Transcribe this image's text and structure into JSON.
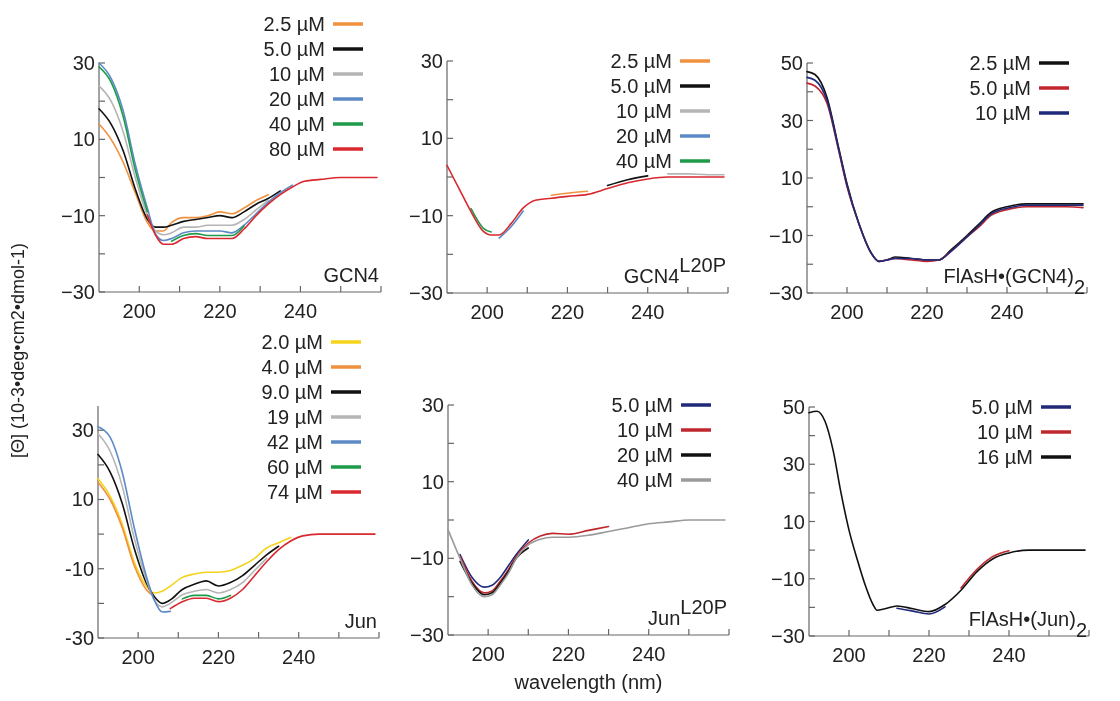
{
  "chart_data": [
    {
      "type": "line",
      "ylabel": "[Θ] (10-3•deg•cm2•dmol-1)",
      "annotations": [
        "GCN4"
      ],
      "legend": "top right",
      "xlim": [
        190,
        260
      ],
      "ylim": [
        -30,
        30
      ],
      "xticks": [
        200,
        {
          "value": 210,
          "label": null
        },
        220,
        {
          "value": 230,
          "label": null
        },
        240,
        {
          "value": 250,
          "label": null
        },
        {
          "value": 260,
          "label": null
        }
      ],
      "yticks": [
        30,
        {
          "value": 20,
          "label": null
        },
        10,
        {
          "value": 0,
          "label": null
        },
        -10,
        {
          "value": -20,
          "label": null
        },
        -30
      ],
      "x": [
        190,
        193,
        196,
        199,
        202,
        204,
        206,
        208,
        211,
        214,
        217,
        220,
        223,
        226,
        229,
        232,
        235,
        238,
        241,
        245,
        250,
        255,
        259
      ],
      "series": [
        {
          "name": "2.5 µM",
          "color": "#f0913f",
          "values": [
            14,
            10,
            4,
            -4,
            -11.8,
            -14,
            -14,
            -11.8,
            -10.5,
            -10.5,
            -10,
            -9,
            -9.5,
            -8,
            -6,
            -4.5,
            null,
            null,
            null,
            null,
            null,
            null,
            null
          ]
        },
        {
          "name": "5.0 µM",
          "color": "#111111",
          "values": [
            18,
            14,
            7,
            -3,
            -10.9,
            -13,
            -13,
            -12.5,
            -11.5,
            -11,
            -10.5,
            -10,
            -10.5,
            -9,
            -7,
            -5.5,
            -3.5,
            null,
            null,
            null,
            null,
            null,
            null
          ]
        },
        {
          "name": "10 µM",
          "color": "#b5b5b5",
          "values": [
            24,
            20,
            12,
            0,
            -10,
            -14,
            -15,
            -14.5,
            -13,
            -13,
            -12.5,
            -12.5,
            -12.5,
            -11,
            -8.5,
            -6,
            null,
            null,
            null,
            null,
            null,
            null,
            null
          ]
        },
        {
          "name": "20 µM",
          "color": "#5b8ac6",
          "values": [
            30,
            26,
            17.5,
            3.5,
            -8,
            -14.8,
            -16.5,
            -16,
            -14.5,
            -14,
            -14,
            -14,
            -14.5,
            -12.5,
            -9.5,
            -6.5,
            -4,
            -2,
            null,
            null,
            null,
            null,
            null
          ]
        },
        {
          "name": "40 µM",
          "color": "#1e9b4a",
          "values": [
            29,
            25,
            16,
            2,
            -9,
            null,
            null,
            -16.7,
            -15.2,
            -14.7,
            -15.2,
            -15.2,
            -15.2,
            -12.7,
            null,
            null,
            null,
            null,
            null,
            null,
            null,
            null,
            null
          ]
        },
        {
          "name": "80 µM",
          "color": "#d9282f",
          "values": [
            null,
            null,
            null,
            null,
            -9.8,
            -15,
            -17.5,
            -17.5,
            -16,
            -15.5,
            -16,
            -16,
            -16,
            -13.5,
            -10,
            -7,
            -4.5,
            -2.5,
            -1,
            -0.5,
            0,
            0,
            0
          ]
        }
      ]
    },
    {
      "type": "line",
      "annotations": [
        "GCN4$^{L20P}$"
      ],
      "legend": "top right",
      "xlim": [
        190,
        260
      ],
      "ylim": [
        -30,
        30
      ],
      "xticks": [
        200,
        {
          "value": 210,
          "label": null
        },
        220,
        {
          "value": 230,
          "label": null
        },
        240,
        {
          "value": 250,
          "label": null
        },
        {
          "value": 260,
          "label": null
        }
      ],
      "yticks": [
        30,
        {
          "value": 20,
          "label": null
        },
        10,
        {
          "value": 0,
          "label": null
        },
        -10,
        {
          "value": -20,
          "label": null
        },
        -30
      ],
      "x": [
        190,
        193,
        196,
        199,
        201,
        203,
        206,
        209,
        212,
        216,
        220,
        225,
        230,
        235,
        240,
        245,
        250,
        255,
        259
      ],
      "series": [
        {
          "name": "2.5 µM",
          "color": "#f0913f",
          "values": [
            null,
            null,
            null,
            null,
            null,
            null,
            null,
            null,
            null,
            -4.7,
            -4.2,
            -3.7,
            null,
            null,
            null,
            null,
            null,
            null,
            null
          ]
        },
        {
          "name": "5.0 µM",
          "color": "#111111",
          "values": [
            null,
            null,
            null,
            null,
            null,
            null,
            null,
            null,
            null,
            null,
            null,
            null,
            -2.2,
            -0.7,
            0.3,
            null,
            null,
            null,
            null
          ]
        },
        {
          "name": "10 µM",
          "color": "#b5b5b5",
          "values": [
            null,
            null,
            null,
            null,
            null,
            null,
            null,
            null,
            null,
            null,
            null,
            null,
            null,
            null,
            null,
            0.8,
            0.8,
            0.6,
            0.6
          ]
        },
        {
          "name": "20 µM",
          "color": "#5b8ac6",
          "values": [
            null,
            null,
            null,
            null,
            null,
            -15.8,
            -12.8,
            -8.8,
            null,
            null,
            null,
            null,
            null,
            null,
            null,
            null,
            null,
            null,
            null
          ]
        },
        {
          "name": "40 µM",
          "color": "#1e9b4a",
          "values": [
            null,
            null,
            -8.2,
            -13.2,
            -14.2,
            null,
            null,
            null,
            null,
            null,
            null,
            null,
            null,
            null,
            null,
            null,
            null,
            null,
            null
          ]
        },
        {
          "color": "#d9282f",
          "values": [
            3,
            -3,
            -9,
            -14,
            -15,
            -15,
            -12,
            -8,
            -6,
            -5.5,
            -5,
            -4.5,
            -3,
            -1.5,
            -0.5,
            0,
            0,
            0,
            0
          ]
        }
      ]
    },
    {
      "type": "line",
      "annotations": [
        "FlAsH•(GCN4)$_{2}$"
      ],
      "legend": "top right",
      "xlim": [
        190,
        260
      ],
      "ylim": [
        -30,
        50
      ],
      "xticks": [
        200,
        {
          "value": 210,
          "label": null
        },
        220,
        {
          "value": 230,
          "label": null
        },
        240,
        {
          "value": 250,
          "label": null
        },
        {
          "value": 260,
          "label": null
        }
      ],
      "yticks": [
        50,
        {
          "value": 40,
          "label": null
        },
        30,
        {
          "value": 20,
          "label": null
        },
        10,
        {
          "value": 0,
          "label": null
        },
        -10,
        {
          "value": -20,
          "label": null
        },
        -30
      ],
      "x": [
        190,
        192,
        195,
        198,
        200,
        203,
        206,
        208,
        210,
        212,
        216,
        220,
        223,
        226,
        230,
        233,
        236,
        240,
        245,
        250,
        255,
        259
      ],
      "series": [
        {
          "name": "2.5 µM",
          "color": "#111111",
          "values": [
            47,
            46,
            38,
            20,
            8,
            -6,
            -16,
            -19,
            -18.5,
            -17.5,
            -18,
            -18.5,
            -18.5,
            -15,
            -10,
            -6,
            -2,
            0,
            1,
            1,
            1,
            1
          ]
        },
        {
          "name": "5.0 µM",
          "color": "#c0272d",
          "values": [
            43,
            42,
            36,
            19,
            7,
            -6,
            -16,
            -19,
            -18.5,
            -18,
            -18.5,
            -19,
            -18.5,
            -15.5,
            -10.5,
            -7,
            -3,
            -1,
            0,
            0,
            0,
            -0.3
          ]
        },
        {
          "name": "10 µM",
          "color": "#1f2a7a",
          "values": [
            45,
            44,
            37,
            19.5,
            7.5,
            -6,
            -16,
            -19,
            -18.5,
            -18,
            -18,
            -18.5,
            -18.5,
            -15.5,
            -10.5,
            -6.5,
            -2.5,
            -0.5,
            0.5,
            0.5,
            0.5,
            0.5
          ]
        }
      ]
    },
    {
      "type": "line",
      "annotations": [
        "Jun"
      ],
      "legend": "top right",
      "xlim": [
        190,
        260
      ],
      "ylim": [
        -30,
        37
      ],
      "xticks": [
        200,
        {
          "value": 210,
          "label": null
        },
        220,
        {
          "value": 230,
          "label": null
        },
        240,
        {
          "value": 250,
          "label": null
        },
        {
          "value": 260,
          "label": null
        }
      ],
      "yticks": [
        30,
        {
          "value": 20,
          "label": null
        },
        10,
        {
          "value": 0,
          "label": null
        },
        {
          "value": -10,
          "label": "-10"
        },
        {
          "value": -20,
          "label": null
        },
        {
          "value": -30,
          "label": "-30"
        }
      ],
      "x": [
        190,
        193,
        196,
        199,
        202,
        204,
        206,
        208,
        211,
        214,
        217,
        220,
        223,
        226,
        229,
        232,
        235,
        238,
        241,
        245,
        250,
        255,
        259
      ],
      "series": [
        {
          "name": "2.0 µM",
          "color": "#f5d31a",
          "values": [
            16,
            11,
            3,
            -8,
            -15,
            -17,
            -16.5,
            -15,
            -12.5,
            -11.5,
            -11,
            -11,
            -10.5,
            -9,
            -7,
            -4,
            -2.5,
            -1,
            null,
            null,
            null,
            null,
            null
          ]
        },
        {
          "name": "4.0 µM",
          "color": "#f0913f",
          "values": [
            15,
            10,
            2,
            -9,
            -16,
            -18,
            null,
            null,
            null,
            null,
            null,
            null,
            null,
            null,
            null,
            null,
            null,
            null,
            null,
            null,
            null,
            null,
            null
          ]
        },
        {
          "name": "9.0 µM",
          "color": "#111111",
          "values": [
            23,
            18,
            9,
            -4,
            -14,
            -18,
            -20,
            -19,
            -16,
            -14.5,
            -13.5,
            -15,
            -14,
            -12,
            -9,
            -6,
            -3.5,
            null,
            null,
            null,
            null,
            null,
            null
          ]
        },
        {
          "name": "19 µM",
          "color": "#b5b5b5",
          "values": [
            29,
            24,
            14,
            -1,
            -13,
            -19,
            -21,
            -20,
            -17.5,
            -16.5,
            -16,
            -17,
            -16,
            -14,
            -10.5,
            -7,
            null,
            null,
            null,
            null,
            null,
            null,
            null
          ]
        },
        {
          "name": "42 µM",
          "color": "#5b8ac6",
          "values": [
            31,
            28,
            18,
            2,
            -12,
            -19,
            -22.5,
            -22.3,
            null,
            null,
            null,
            null,
            null,
            null,
            null,
            null,
            null,
            null,
            null,
            null,
            null,
            null,
            null
          ]
        },
        {
          "name": "60 µM",
          "color": "#1e9b4a",
          "values": [
            null,
            null,
            null,
            null,
            null,
            null,
            null,
            null,
            -18.7,
            -17.7,
            -17.7,
            -18.7,
            -17.7,
            null,
            null,
            null,
            null,
            null,
            null,
            null,
            null,
            null,
            null
          ]
        },
        {
          "name": "74 µM",
          "color": "#d9282f",
          "values": [
            null,
            null,
            null,
            null,
            null,
            null,
            null,
            -21.5,
            -19.5,
            -18.5,
            -18.5,
            -19.5,
            -18.5,
            -16,
            -12,
            -8,
            -4.5,
            -2,
            -0.5,
            0,
            0,
            0,
            0
          ]
        }
      ]
    },
    {
      "type": "line",
      "xlabel": "wavelength (nm)",
      "annotations": [
        "Jun$^{L20P}$"
      ],
      "legend": "top right",
      "xlim": [
        190,
        260
      ],
      "ylim": [
        -30,
        30
      ],
      "xticks": [
        200,
        {
          "value": 210,
          "label": null
        },
        220,
        {
          "value": 230,
          "label": null
        },
        240,
        {
          "value": 250,
          "label": null
        },
        {
          "value": 260,
          "label": null
        }
      ],
      "yticks": [
        30,
        {
          "value": 20,
          "label": null
        },
        10,
        {
          "value": 0,
          "label": null
        },
        -10,
        {
          "value": -20,
          "label": null
        },
        -30
      ],
      "x": [
        190,
        193,
        196,
        199,
        201,
        203,
        205,
        207,
        210,
        213,
        216,
        220,
        225,
        230,
        235,
        240,
        245,
        250,
        255,
        259
      ],
      "series": [
        {
          "name": "5.0 µM",
          "color": "#1f2a7a",
          "values": [
            null,
            -9,
            -15,
            -17.5,
            -17,
            -15,
            -12,
            -9,
            -5.2,
            null,
            null,
            null,
            null,
            null,
            null,
            null,
            null,
            null,
            null,
            null
          ]
        },
        {
          "name": "10 µM",
          "color": "#c0272d",
          "values": [
            null,
            -9.5,
            -16,
            -19,
            -18.5,
            -16,
            -13,
            -9.5,
            -6,
            -4.2,
            -3.5,
            -3.7,
            -2.7,
            -1.7,
            null,
            null,
            null,
            null,
            null,
            null
          ]
        },
        {
          "name": "20 µM",
          "color": "#111111",
          "values": [
            null,
            -10.8,
            -16.5,
            -19.5,
            -19,
            -16.5,
            -13.5,
            -10,
            -7.3,
            null,
            null,
            null,
            null,
            null,
            null,
            null,
            null,
            null,
            null,
            null
          ]
        },
        {
          "name": "40 µM",
          "color": "#9a9a9a",
          "values": [
            -2.5,
            -10,
            -17,
            -20,
            -19.5,
            -17,
            -14,
            -10,
            -6.5,
            -5,
            -4.5,
            -4.5,
            -4,
            -3,
            -2,
            -1,
            -0.5,
            0,
            0,
            0
          ]
        }
      ]
    },
    {
      "type": "line",
      "annotations": [
        "FlAsH•(Jun)$_{2}$"
      ],
      "legend": "top right",
      "xlim": [
        190,
        260
      ],
      "ylim": [
        -30,
        50
      ],
      "xticks": [
        200,
        {
          "value": 210,
          "label": null
        },
        220,
        {
          "value": 230,
          "label": null
        },
        240,
        {
          "value": 250,
          "label": null
        },
        {
          "value": 260,
          "label": null
        }
      ],
      "yticks": [
        50,
        {
          "value": 40,
          "label": null
        },
        30,
        {
          "value": 20,
          "label": null
        },
        10,
        {
          "value": 0,
          "label": null
        },
        -10,
        {
          "value": -20,
          "label": null
        },
        -30
      ],
      "x": [
        190,
        192,
        194,
        196,
        198,
        200,
        202,
        204,
        206,
        207,
        209,
        212,
        216,
        220,
        224,
        228,
        232,
        236,
        240,
        245,
        250,
        255,
        259
      ],
      "series": [
        {
          "name": "5.0 µM",
          "color": "#1f2a7a",
          "values": [
            null,
            null,
            null,
            null,
            null,
            null,
            null,
            null,
            null,
            null,
            null,
            -20.3,
            -21.3,
            -22.3,
            -19.8,
            null,
            null,
            null,
            null,
            null,
            null,
            null,
            null
          ]
        },
        {
          "name": "10 µM",
          "color": "#c0272d",
          "values": [
            null,
            null,
            null,
            null,
            null,
            null,
            null,
            null,
            null,
            null,
            null,
            null,
            null,
            null,
            null,
            -13.2,
            -6.7,
            -2.2,
            -0.2,
            null,
            null,
            null,
            null
          ]
        },
        {
          "name": "16 µM",
          "color": "#111111",
          "values": [
            48,
            48.5,
            45,
            35,
            20,
            7,
            -3,
            -12,
            -19,
            -21,
            -20.5,
            -19.5,
            -20.5,
            -21.5,
            -19,
            -14,
            -7.5,
            -3,
            -1,
            0,
            0,
            0,
            0
          ]
        }
      ]
    }
  ]
}
